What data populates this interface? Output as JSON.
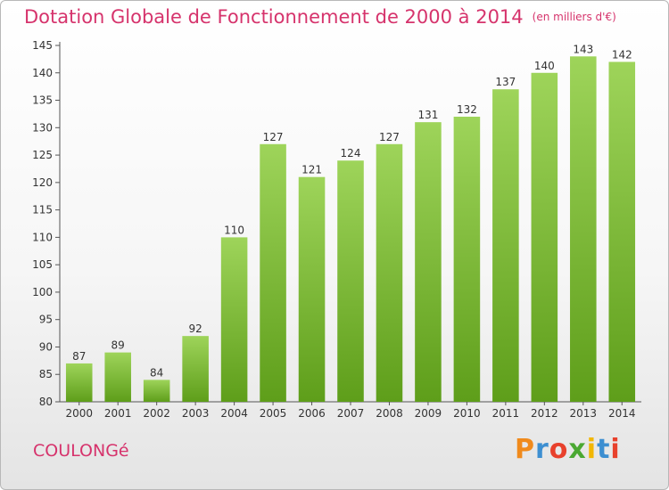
{
  "chart_data": {
    "type": "bar",
    "title": "Dotation Globale de Fonctionnement de 2000 à 2014",
    "subtitle": "(en milliers d'€)",
    "categories": [
      "2000",
      "2001",
      "2002",
      "2003",
      "2004",
      "2005",
      "2006",
      "2007",
      "2008",
      "2009",
      "2010",
      "2011",
      "2012",
      "2013",
      "2014"
    ],
    "values": [
      87,
      89,
      84,
      92,
      110,
      127,
      121,
      124,
      127,
      131,
      132,
      137,
      140,
      143,
      142
    ],
    "xlabel": "",
    "ylabel": "",
    "ylim": [
      80,
      145
    ],
    "yticks": [
      80,
      85,
      90,
      95,
      100,
      105,
      110,
      115,
      120,
      125,
      130,
      135,
      140,
      145
    ],
    "grid": false,
    "bar_color": "#7cb82f"
  },
  "footer": {
    "commune": "COULONGé",
    "logo": "Proxiti",
    "logo_colors": [
      "#f08a1c",
      "#3d8fd1",
      "#e8412c",
      "#4aa832",
      "#f2b705",
      "#3d8fd1",
      "#e8412c"
    ]
  }
}
